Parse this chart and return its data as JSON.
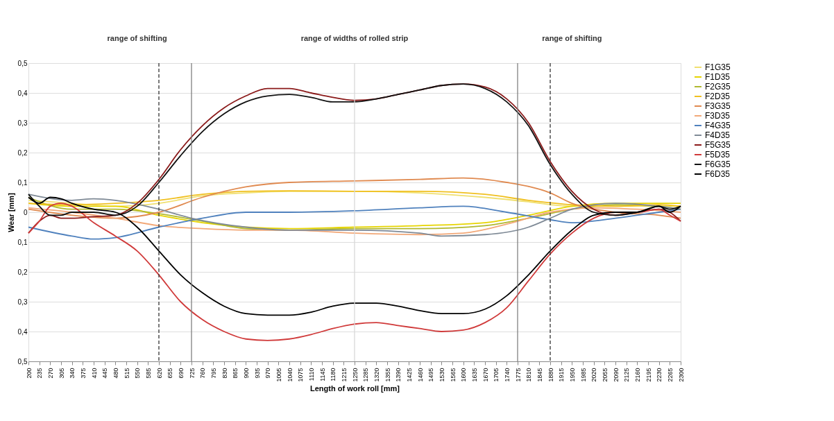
{
  "chart_data": {
    "type": "line",
    "xlabel": "Length of work roll [mm]",
    "ylabel": "Wear [mm]",
    "xlim": [
      200,
      2300
    ],
    "xticks": [
      200,
      235,
      270,
      305,
      340,
      375,
      410,
      445,
      480,
      515,
      550,
      585,
      620,
      655,
      690,
      725,
      760,
      795,
      830,
      865,
      900,
      935,
      970,
      1005,
      1040,
      1075,
      1110,
      1145,
      1180,
      1215,
      1250,
      1285,
      1320,
      1355,
      1390,
      1425,
      1460,
      1495,
      1530,
      1565,
      1600,
      1635,
      1670,
      1705,
      1740,
      1775,
      1810,
      1845,
      1880,
      1915,
      1950,
      1985,
      2020,
      2055,
      2090,
      2125,
      2160,
      2195,
      2230,
      2265,
      2300
    ],
    "ylim": [
      -0.5,
      0.5
    ],
    "yticks": [
      {
        "value": -0.5,
        "label": "0,5"
      },
      {
        "value": -0.4,
        "label": "0,4"
      },
      {
        "value": -0.3,
        "label": "0,3"
      },
      {
        "value": -0.2,
        "label": "0,2"
      },
      {
        "value": -0.1,
        "label": "0,1"
      },
      {
        "value": 0,
        "label": "0"
      },
      {
        "value": 0.1,
        "label": "0,1"
      },
      {
        "value": 0.2,
        "label": "0,2"
      },
      {
        "value": 0.3,
        "label": "0,3"
      },
      {
        "value": 0.4,
        "label": "0,4"
      },
      {
        "value": 0.5,
        "label": "0,5"
      }
    ],
    "grid": "y",
    "legend": "right",
    "marker": "none",
    "line_style": "solid",
    "annotations": [
      "range of shifting",
      "range of widths of rolled strip",
      "range of shifting"
    ],
    "ref_lines": [
      {
        "axis": "x",
        "value": 620,
        "color": "#333333",
        "line_style": "dashed"
      },
      {
        "axis": "x",
        "value": 725,
        "color": "#808080",
        "line_style": "solid"
      },
      {
        "axis": "x",
        "value": 1250,
        "color": "#d8d8d8",
        "line_style": "solid"
      },
      {
        "axis": "x",
        "value": 1775,
        "color": "#808080",
        "line_style": "solid"
      },
      {
        "axis": "x",
        "value": 1880,
        "color": "#333333",
        "line_style": "dashed"
      }
    ],
    "series": [
      {
        "name": "F1G35",
        "color": "#f0e070",
        "x": [
          200,
          340,
          480,
          620,
          760,
          900,
          1040,
          1250,
          1460,
          1670,
          1810,
          1950,
          2090,
          2230,
          2300
        ],
        "values": [
          0.04,
          0.03,
          0.02,
          0.03,
          0.055,
          0.065,
          0.07,
          0.07,
          0.065,
          0.05,
          0.035,
          0.02,
          0.02,
          0.02,
          0.02
        ]
      },
      {
        "name": "F1D35",
        "color": "#e6d400",
        "x": [
          200,
          340,
          480,
          620,
          760,
          900,
          1040,
          1250,
          1460,
          1670,
          1810,
          1950,
          2090,
          2230,
          2300
        ],
        "values": [
          0.03,
          0.02,
          0.02,
          -0.01,
          -0.035,
          -0.05,
          -0.055,
          -0.05,
          -0.045,
          -0.035,
          -0.01,
          0.02,
          0.03,
          0.03,
          0.03
        ]
      },
      {
        "name": "F2G35",
        "color": "#b0b830",
        "x": [
          200,
          340,
          480,
          620,
          760,
          900,
          1040,
          1250,
          1460,
          1670,
          1810,
          1950,
          2090,
          2230,
          2300
        ],
        "values": [
          0.05,
          0.01,
          0.01,
          -0.005,
          -0.03,
          -0.055,
          -0.06,
          -0.055,
          -0.055,
          -0.045,
          -0.02,
          0.01,
          0.025,
          0.02,
          0.01
        ]
      },
      {
        "name": "F2D35",
        "color": "#f0c020",
        "x": [
          200,
          340,
          480,
          620,
          760,
          900,
          1040,
          1250,
          1460,
          1670,
          1810,
          1950,
          2090,
          2230,
          2300
        ],
        "values": [
          0.03,
          0.025,
          0.03,
          0.04,
          0.06,
          0.07,
          0.072,
          0.07,
          0.07,
          0.06,
          0.04,
          0.025,
          0.02,
          0.025,
          0.02
        ]
      },
      {
        "name": "F3G35",
        "color": "#e08a50",
        "x": [
          200,
          340,
          480,
          620,
          760,
          900,
          1040,
          1250,
          1460,
          1600,
          1740,
          1880,
          1950,
          2090,
          2230,
          2300
        ],
        "values": [
          0.01,
          -0.01,
          -0.02,
          0.0,
          0.05,
          0.085,
          0.1,
          0.105,
          0.11,
          0.115,
          0.1,
          0.065,
          0.03,
          0.0,
          -0.01,
          -0.02
        ]
      },
      {
        "name": "F3D35",
        "color": "#f2a878",
        "x": [
          200,
          340,
          480,
          620,
          760,
          900,
          1040,
          1250,
          1460,
          1600,
          1740,
          1880,
          2020,
          2160,
          2300
        ],
        "values": [
          0.015,
          0.0,
          -0.02,
          -0.045,
          -0.055,
          -0.06,
          -0.06,
          -0.07,
          -0.075,
          -0.07,
          -0.04,
          0.0,
          0.015,
          0.01,
          0.0
        ]
      },
      {
        "name": "F4G35",
        "color": "#4f81bd",
        "x": [
          200,
          340,
          410,
          480,
          620,
          760,
          900,
          1040,
          1250,
          1460,
          1600,
          1740,
          1880,
          1950,
          2090,
          2230,
          2300
        ],
        "values": [
          -0.05,
          -0.08,
          -0.09,
          -0.085,
          -0.05,
          -0.02,
          0.0,
          0.0,
          0.005,
          0.015,
          0.02,
          0.0,
          -0.025,
          -0.035,
          -0.02,
          0.0,
          0.01
        ]
      },
      {
        "name": "F4D35",
        "color": "#7f8a96",
        "x": [
          200,
          340,
          410,
          480,
          620,
          725,
          900,
          1040,
          1250,
          1460,
          1530,
          1670,
          1810,
          1880,
          1950,
          2090,
          2230,
          2300
        ],
        "values": [
          0.06,
          0.04,
          0.045,
          0.04,
          0.01,
          -0.02,
          -0.05,
          -0.06,
          -0.06,
          -0.07,
          -0.08,
          -0.075,
          -0.05,
          -0.02,
          0.01,
          0.03,
          0.02,
          0.01
        ]
      },
      {
        "name": "F5G35",
        "color": "#8b1a1a",
        "x": [
          200,
          235,
          270,
          305,
          340,
          410,
          480,
          550,
          620,
          690,
          760,
          830,
          900,
          970,
          1040,
          1110,
          1180,
          1250,
          1320,
          1390,
          1460,
          1530,
          1600,
          1670,
          1740,
          1810,
          1880,
          1950,
          2020,
          2090,
          2160,
          2230,
          2265,
          2300
        ],
        "values": [
          -0.07,
          -0.03,
          -0.01,
          -0.02,
          -0.02,
          -0.015,
          -0.01,
          0.03,
          0.11,
          0.21,
          0.29,
          0.35,
          0.39,
          0.415,
          0.415,
          0.4,
          0.385,
          0.375,
          0.38,
          0.395,
          0.41,
          0.425,
          0.43,
          0.42,
          0.38,
          0.3,
          0.17,
          0.07,
          0.01,
          -0.01,
          0.0,
          0.01,
          0.0,
          -0.03
        ]
      },
      {
        "name": "F5D35",
        "color": "#d03a3a",
        "x": [
          200,
          235,
          270,
          305,
          340,
          410,
          480,
          550,
          620,
          690,
          760,
          830,
          900,
          970,
          1040,
          1110,
          1180,
          1250,
          1320,
          1390,
          1460,
          1530,
          1600,
          1670,
          1740,
          1810,
          1880,
          1950,
          2020,
          2090,
          2160,
          2230,
          2265,
          2300
        ],
        "values": [
          -0.07,
          -0.03,
          0.02,
          0.03,
          0.02,
          -0.035,
          -0.08,
          -0.13,
          -0.21,
          -0.3,
          -0.36,
          -0.4,
          -0.425,
          -0.43,
          -0.425,
          -0.41,
          -0.39,
          -0.375,
          -0.37,
          -0.38,
          -0.39,
          -0.4,
          -0.395,
          -0.37,
          -0.32,
          -0.23,
          -0.14,
          -0.07,
          -0.02,
          0.0,
          0.0,
          0.01,
          -0.01,
          -0.03
        ]
      },
      {
        "name": "F6G35",
        "color": "#111111",
        "x": [
          200,
          235,
          270,
          305,
          340,
          410,
          480,
          550,
          620,
          690,
          760,
          830,
          900,
          970,
          1040,
          1110,
          1180,
          1250,
          1320,
          1390,
          1460,
          1530,
          1600,
          1670,
          1740,
          1810,
          1880,
          1950,
          2020,
          2090,
          2160,
          2230,
          2265,
          2300
        ],
        "values": [
          0.06,
          0.02,
          -0.01,
          -0.01,
          0.0,
          0.0,
          -0.01,
          0.02,
          0.1,
          0.19,
          0.27,
          0.33,
          0.37,
          0.39,
          0.395,
          0.385,
          0.37,
          0.37,
          0.38,
          0.395,
          0.41,
          0.425,
          0.43,
          0.415,
          0.37,
          0.29,
          0.16,
          0.06,
          0.0,
          -0.01,
          0.0,
          0.02,
          0.01,
          0.02
        ]
      },
      {
        "name": "F6D35",
        "color": "#000000",
        "x": [
          200,
          235,
          270,
          305,
          340,
          410,
          480,
          550,
          620,
          690,
          760,
          830,
          900,
          970,
          1040,
          1110,
          1180,
          1250,
          1320,
          1390,
          1460,
          1530,
          1600,
          1670,
          1740,
          1810,
          1880,
          1950,
          2020,
          2090,
          2160,
          2230,
          2265,
          2300
        ],
        "values": [
          0.05,
          0.03,
          0.05,
          0.045,
          0.03,
          0.01,
          0.0,
          -0.05,
          -0.13,
          -0.21,
          -0.27,
          -0.315,
          -0.34,
          -0.345,
          -0.345,
          -0.335,
          -0.315,
          -0.305,
          -0.305,
          -0.315,
          -0.33,
          -0.34,
          -0.34,
          -0.325,
          -0.28,
          -0.21,
          -0.13,
          -0.06,
          -0.01,
          0.0,
          0.0,
          0.02,
          0.0,
          0.02
        ]
      }
    ]
  }
}
